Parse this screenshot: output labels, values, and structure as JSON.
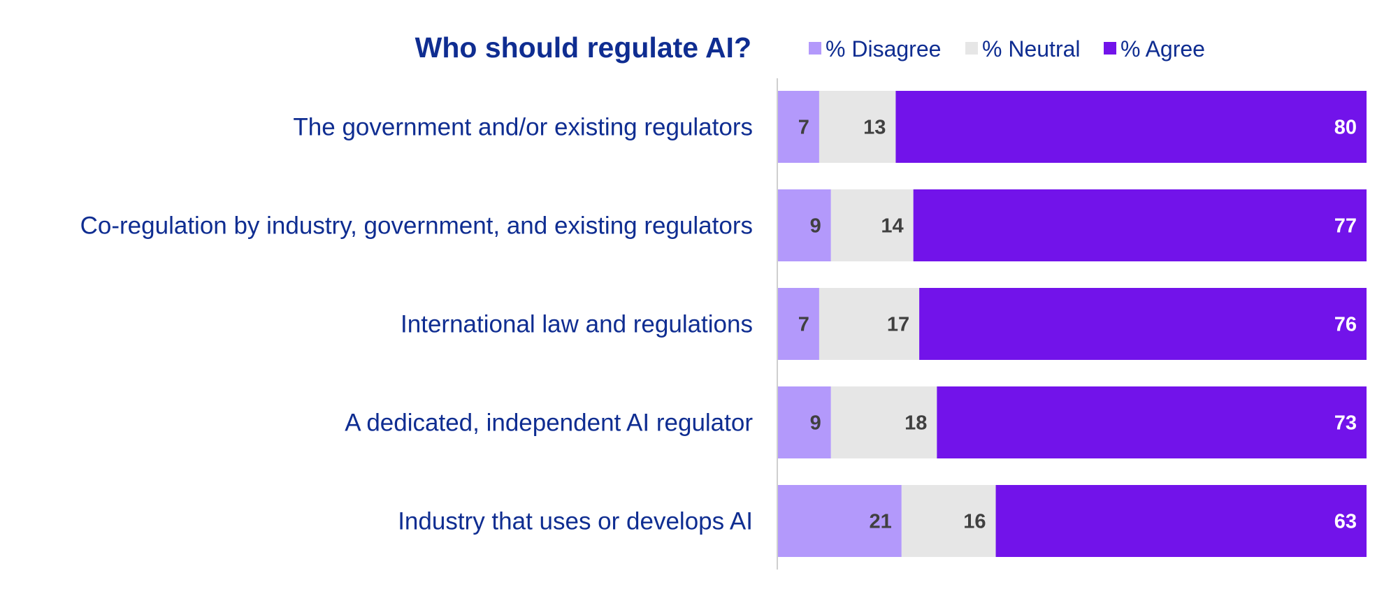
{
  "chart_data": {
    "type": "bar",
    "orientation": "horizontal",
    "stacked": true,
    "title": "Who should regulate AI?",
    "categories": [
      "The government and/or existing regulators",
      "Co-regulation by industry, government, and existing regulators",
      "International law and regulations",
      "A dedicated, independent AI regulator",
      "Industry that uses or develops AI"
    ],
    "series": [
      {
        "name": "% Disagree",
        "color": "#b399fb",
        "label_color": "#404040",
        "values": [
          7,
          9,
          7,
          9,
          21
        ]
      },
      {
        "name": "% Neutral",
        "color": "#e6e6e6",
        "label_color": "#404040",
        "values": [
          13,
          14,
          17,
          18,
          16
        ]
      },
      {
        "name": "% Agree",
        "color": "#7213ea",
        "label_color": "#ffffff",
        "values": [
          80,
          77,
          76,
          73,
          63
        ]
      }
    ],
    "xlim": [
      0,
      100
    ],
    "legend": "top",
    "grid": false
  }
}
